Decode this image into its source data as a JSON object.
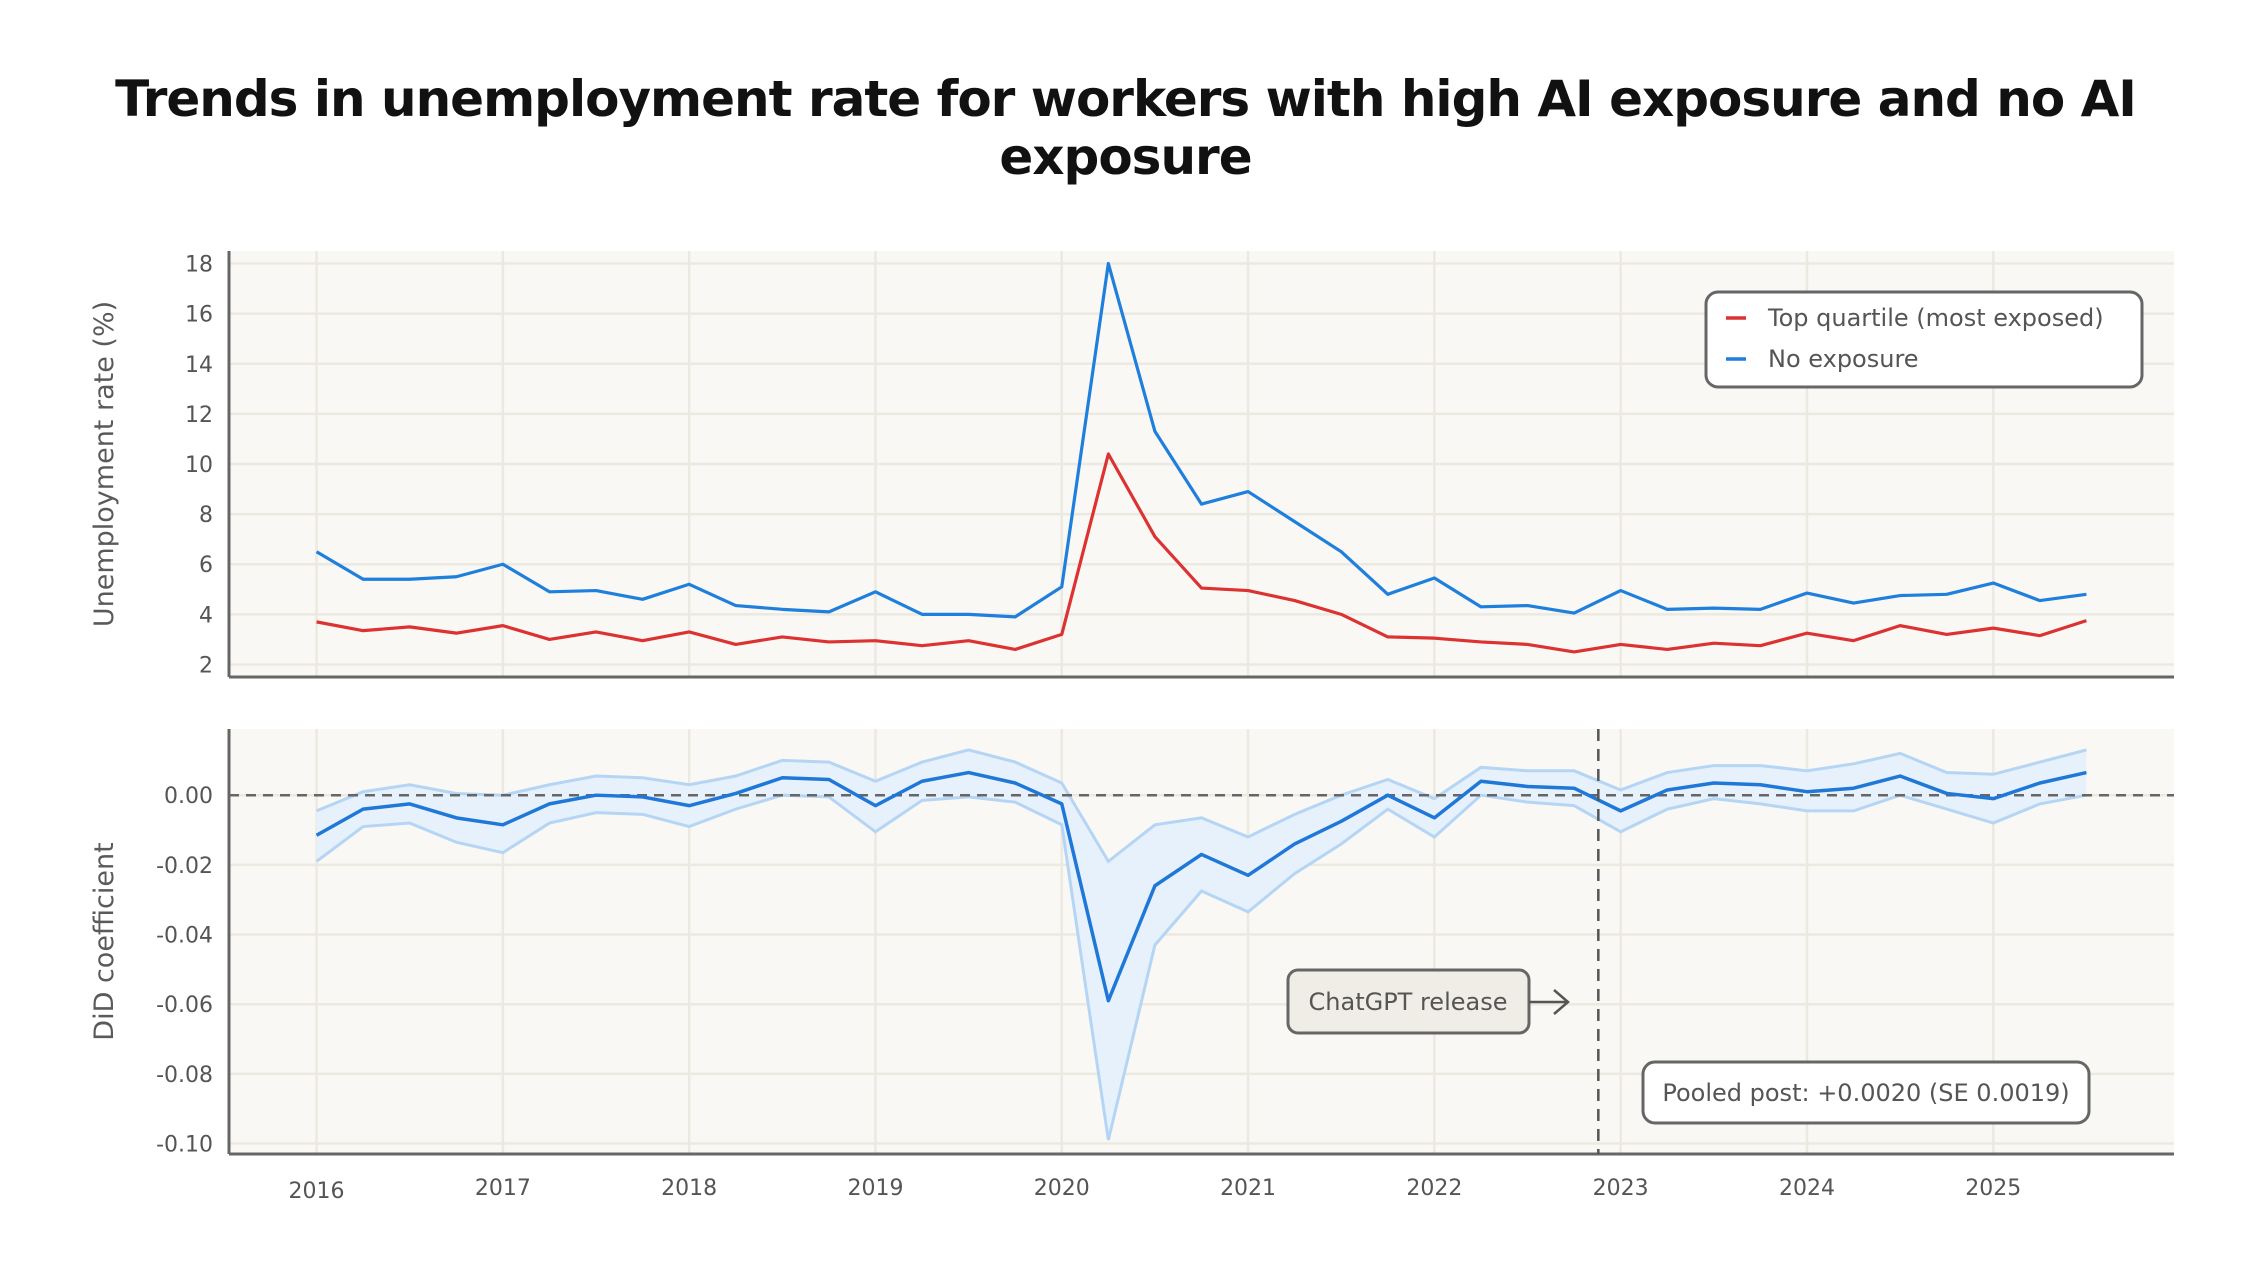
{
  "title": "Trends in unemployment rate for workers with high AI exposure and no AI exposure",
  "colors": {
    "top_quartile": "#dc3232",
    "no_exposure": "#1f7fdc",
    "did_line": "#1f78d8",
    "ci_band": "#e7f1fc",
    "ci_edge": "#b5d5f5",
    "plot_bg": "#f9f8f4",
    "grid": "#ece9e1",
    "axis": "#666666"
  },
  "chart_data": [
    {
      "type": "line",
      "ylabel": "Unemployment rate (%)",
      "xlim": [
        2015.53,
        2025.97
      ],
      "ylim": [
        1.5,
        18.5
      ],
      "yticks": [
        2,
        4,
        6,
        8,
        10,
        12,
        14,
        16,
        18
      ],
      "xticks": [
        2016,
        2017,
        2018,
        2019,
        2020,
        2021,
        2022,
        2023,
        2024,
        2025
      ],
      "grid": true,
      "legend_position": "top-right",
      "x": [
        2016,
        2016.25,
        2016.5,
        2016.75,
        2017,
        2017.25,
        2017.5,
        2017.75,
        2018,
        2018.25,
        2018.5,
        2018.75,
        2019,
        2019.25,
        2019.5,
        2019.75,
        2020,
        2020.25,
        2020.5,
        2020.75,
        2021,
        2021.25,
        2021.5,
        2021.75,
        2022,
        2022.25,
        2022.5,
        2022.75,
        2023,
        2023.25,
        2023.5,
        2023.75,
        2024,
        2024.25,
        2024.5,
        2024.75,
        2025,
        2025.25,
        2025.5
      ],
      "series": [
        {
          "name": "Top quartile (most exposed)",
          "color_key": "top_quartile",
          "values": [
            3.7,
            3.35,
            3.5,
            3.25,
            3.55,
            3.0,
            3.3,
            2.95,
            3.3,
            2.8,
            3.1,
            2.9,
            2.95,
            2.75,
            2.95,
            2.6,
            3.2,
            10.4,
            7.1,
            5.05,
            4.95,
            4.55,
            4.0,
            3.1,
            3.05,
            2.9,
            2.8,
            2.5,
            2.8,
            2.6,
            2.85,
            2.75,
            3.25,
            2.95,
            3.55,
            3.2,
            3.45,
            3.15,
            3.75
          ]
        },
        {
          "name": "No exposure",
          "color_key": "no_exposure",
          "values": [
            6.5,
            5.4,
            5.4,
            5.5,
            6.0,
            4.9,
            4.95,
            4.6,
            5.2,
            4.35,
            4.2,
            4.1,
            4.9,
            4.0,
            4.0,
            3.9,
            5.1,
            18.0,
            11.3,
            8.4,
            8.9,
            7.7,
            6.5,
            4.8,
            5.45,
            4.3,
            4.35,
            4.05,
            4.95,
            4.2,
            4.25,
            4.2,
            4.85,
            4.45,
            4.75,
            4.8,
            5.25,
            4.55,
            4.8
          ]
        }
      ]
    },
    {
      "type": "line",
      "ylabel": "DiD coefficient",
      "xlim": [
        2015.53,
        2025.97
      ],
      "ylim": [
        -0.103,
        0.019
      ],
      "yticks": [
        0.0,
        -0.02,
        -0.04,
        -0.06,
        -0.08,
        -0.1
      ],
      "ytick_labels": [
        "0.00",
        "-0.02",
        "-0.04",
        "-0.06",
        "-0.08",
        "-0.10"
      ],
      "xticks": [
        2016,
        2017,
        2018,
        2019,
        2020,
        2021,
        2022,
        2023,
        2024,
        2025
      ],
      "xtick_labels": [
        "2016",
        "2017",
        "2018",
        "2019",
        "2020",
        "2021",
        "2022",
        "2023",
        "2024",
        "2025"
      ],
      "grid": true,
      "reference_line_y": 0,
      "event_x": 2022.88,
      "event_label": "ChatGPT release",
      "annotation": "Pooled post: +0.0020 (SE 0.0019)",
      "x": [
        2016,
        2016.25,
        2016.5,
        2016.75,
        2017,
        2017.25,
        2017.5,
        2017.75,
        2018,
        2018.25,
        2018.5,
        2018.75,
        2019,
        2019.25,
        2019.5,
        2019.75,
        2020,
        2020.25,
        2020.5,
        2020.75,
        2021,
        2021.25,
        2021.5,
        2021.75,
        2022,
        2022.25,
        2022.5,
        2022.75,
        2023,
        2023.25,
        2023.5,
        2023.75,
        2024,
        2024.25,
        2024.5,
        2024.75,
        2025,
        2025.25,
        2025.5
      ],
      "estimate": [
        -0.0115,
        -0.004,
        -0.0025,
        -0.0065,
        -0.0085,
        -0.0025,
        0.0,
        -0.0005,
        -0.003,
        0.0005,
        0.005,
        0.0045,
        -0.003,
        0.004,
        0.0065,
        0.0035,
        -0.0025,
        -0.059,
        -0.026,
        -0.017,
        -0.023,
        -0.014,
        -0.0075,
        0.0,
        -0.0065,
        0.004,
        0.0025,
        0.002,
        -0.0045,
        0.0015,
        0.0035,
        0.003,
        0.001,
        0.002,
        0.0055,
        0.0005,
        -0.001,
        0.0035,
        0.0065
      ],
      "ci_lower": [
        -0.019,
        -0.009,
        -0.008,
        -0.0135,
        -0.0165,
        -0.008,
        -0.005,
        -0.0055,
        -0.009,
        -0.004,
        0.0,
        -0.0005,
        -0.0105,
        -0.0015,
        -0.0005,
        -0.002,
        -0.0085,
        -0.099,
        -0.043,
        -0.0275,
        -0.0335,
        -0.0225,
        -0.014,
        -0.004,
        -0.012,
        0.0,
        -0.002,
        -0.003,
        -0.0105,
        -0.004,
        -0.001,
        -0.0025,
        -0.0045,
        -0.0045,
        0.0,
        -0.004,
        -0.008,
        -0.0025,
        0.0
      ],
      "ci_upper": [
        -0.0045,
        0.001,
        0.003,
        0.0005,
        0.0,
        0.003,
        0.0055,
        0.005,
        0.003,
        0.0055,
        0.01,
        0.0095,
        0.004,
        0.0095,
        0.013,
        0.0095,
        0.0035,
        -0.019,
        -0.0085,
        -0.0065,
        -0.012,
        -0.0055,
        0.0,
        0.0045,
        -0.001,
        0.008,
        0.007,
        0.007,
        0.0015,
        0.0065,
        0.0085,
        0.0085,
        0.007,
        0.009,
        0.012,
        0.0065,
        0.006,
        0.0095,
        0.013
      ]
    }
  ]
}
